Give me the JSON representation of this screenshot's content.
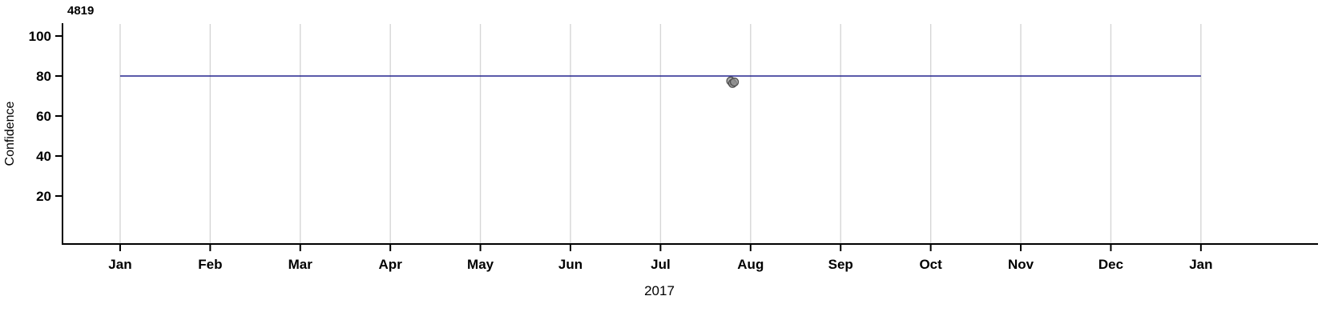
{
  "chart_data": {
    "type": "line",
    "title": "4819",
    "xlabel": "2017",
    "ylabel": "Confidence",
    "x_tick_labels": [
      "Jan",
      "Feb",
      "Mar",
      "Apr",
      "May",
      "Jun",
      "Jul",
      "Aug",
      "Sep",
      "Oct",
      "Nov",
      "Dec",
      "Jan"
    ],
    "y_tick_values": [
      20,
      40,
      60,
      80,
      100
    ],
    "ylim": [
      -4,
      106
    ],
    "xlim_months": [
      -0.64,
      13.3
    ],
    "grid": "vertical-at-each-month",
    "legend": "none",
    "colors": {
      "grid": "#d6d6d6",
      "axis": "#000000",
      "line": "#23238e",
      "point_fill": "#8f8f8f",
      "point_stroke": "#4d4d4d"
    },
    "series": [
      {
        "name": "confidence-threshold-line",
        "type": "line",
        "color": "#23238e",
        "x_months": [
          0,
          12
        ],
        "values": [
          80,
          80
        ]
      },
      {
        "name": "confidence-observations",
        "type": "scatter",
        "fill": "#8f8f8f",
        "stroke": "#4d4d4d",
        "x_months": [
          6.78,
          6.8,
          6.82
        ],
        "values": [
          77.5,
          76.3,
          77.0
        ]
      }
    ]
  }
}
